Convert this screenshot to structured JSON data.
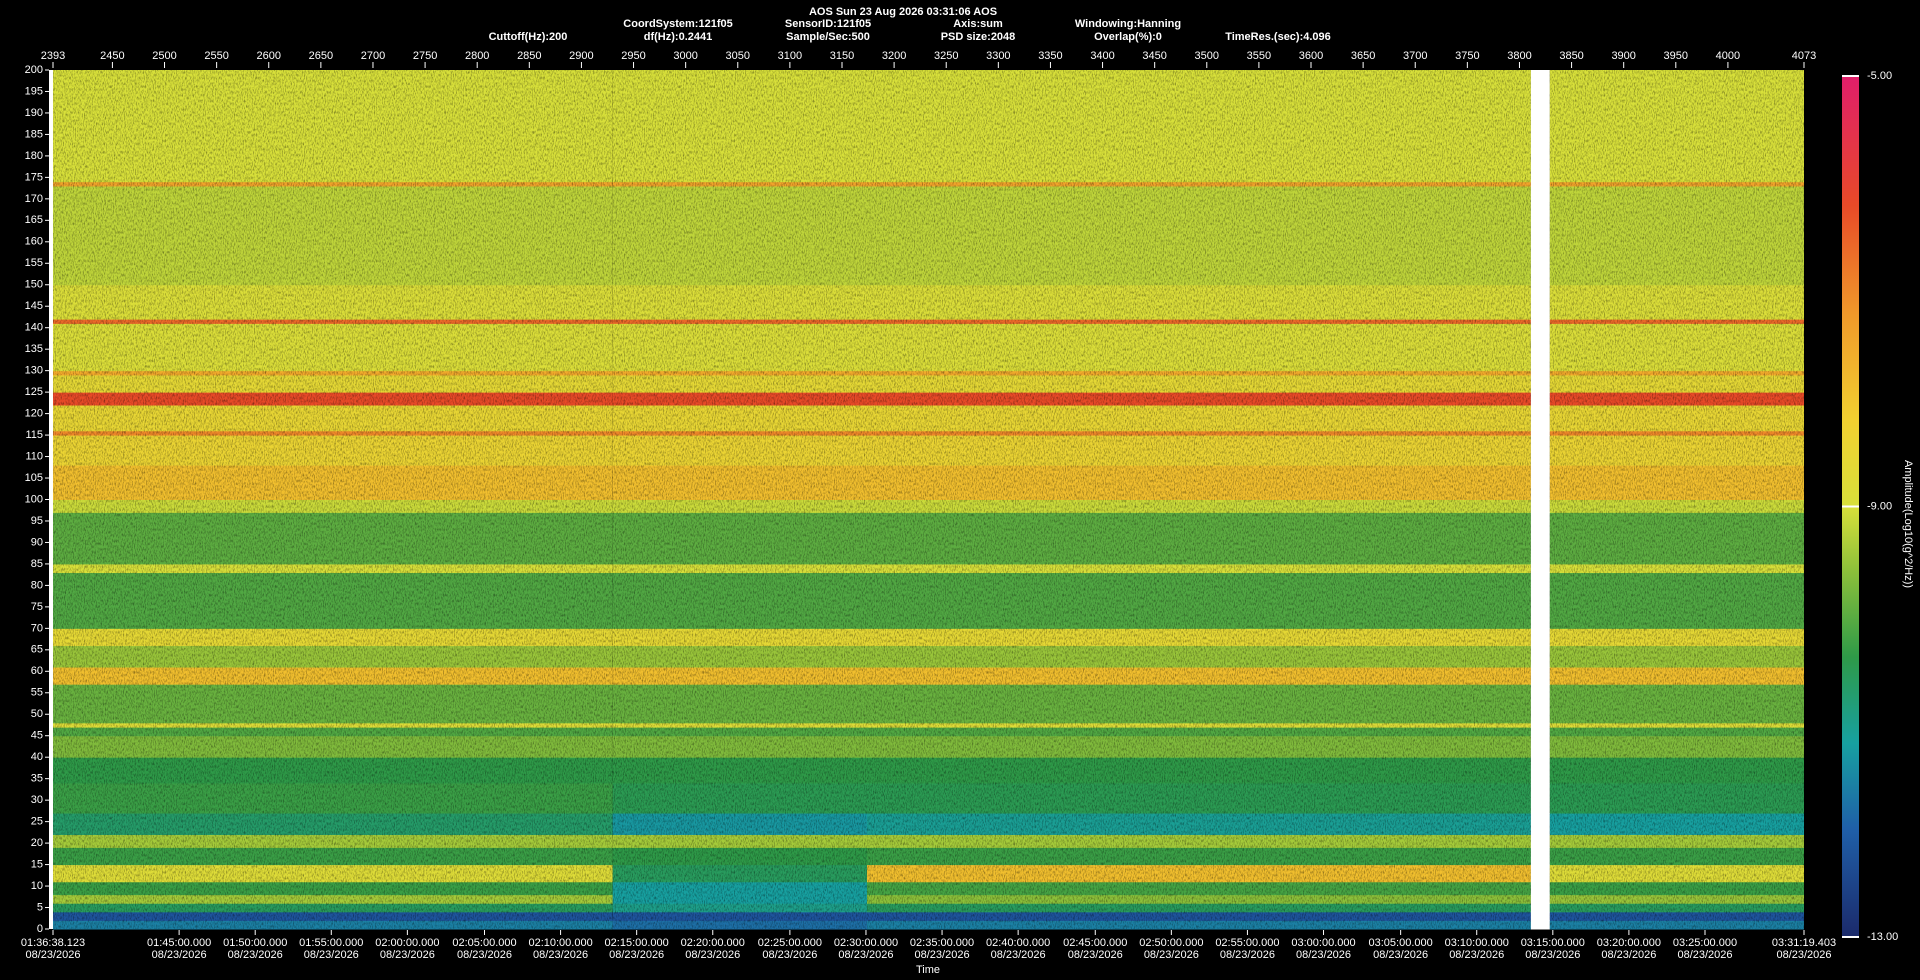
{
  "chart_data": {
    "type": "spectrogram",
    "title": "AOS  Sun 23 Aug 2026 03:31:06  AOS",
    "info_line_1": [
      "CoordSystem:121f05",
      "SensorID:121f05",
      "Axis:sum",
      "Windowing:Hanning"
    ],
    "info_line_2": [
      "Cuttoff(Hz):200",
      "df(Hz):0.2441",
      "Sample/Sec:500",
      "PSD size:2048",
      "Overlap(%):0",
      "TimeRes.(sec):4.096"
    ],
    "xlabel": "Time",
    "colorbar_label": "Amplitude(Log10(g^2/Hz))",
    "xlim": [
      2393,
      4073
    ],
    "xticks": [
      2393,
      2450,
      2500,
      2550,
      2600,
      2650,
      2700,
      2750,
      2800,
      2850,
      2900,
      2950,
      3000,
      3050,
      3100,
      3150,
      3200,
      3250,
      3300,
      3350,
      3400,
      3450,
      3500,
      3550,
      3600,
      3650,
      3700,
      3750,
      3800,
      3850,
      3900,
      3950,
      4000,
      4073
    ],
    "time_ticks": [
      {
        "value": 2393,
        "label": "01:36:38.123"
      },
      {
        "value": 2514,
        "label": "01:45:00.000"
      },
      {
        "value": 2587,
        "label": "01:50:00.000"
      },
      {
        "value": 2660,
        "label": "01:55:00.000"
      },
      {
        "value": 2733,
        "label": "02:00:00.000"
      },
      {
        "value": 2807,
        "label": "02:05:00.000"
      },
      {
        "value": 2880,
        "label": "02:10:00.000"
      },
      {
        "value": 2953,
        "label": "02:15:00.000"
      },
      {
        "value": 3026,
        "label": "02:20:00.000"
      },
      {
        "value": 3100,
        "label": "02:25:00.000"
      },
      {
        "value": 3173,
        "label": "02:30:00.000"
      },
      {
        "value": 3246,
        "label": "02:35:00.000"
      },
      {
        "value": 3319,
        "label": "02:40:00.000"
      },
      {
        "value": 3393,
        "label": "02:45:00.000"
      },
      {
        "value": 3466,
        "label": "02:50:00.000"
      },
      {
        "value": 3539,
        "label": "02:55:00.000"
      },
      {
        "value": 3612,
        "label": "03:00:00.000"
      },
      {
        "value": 3686,
        "label": "03:05:00.000"
      },
      {
        "value": 3759,
        "label": "03:10:00.000"
      },
      {
        "value": 3832,
        "label": "03:15:00.000"
      },
      {
        "value": 3905,
        "label": "03:20:00.000"
      },
      {
        "value": 3978,
        "label": "03:25:00.000"
      },
      {
        "value": 4073,
        "label": "03:31:19.403"
      }
    ],
    "time_tick_dates": [
      "08/23/2026",
      "08/23/2026",
      "08/23/2026",
      "08/23/2026",
      "08/23/2026",
      "08/23/2026",
      "08/23/2026",
      "08/23/2026",
      "08/23/2026",
      "08/23/2026",
      "08/23/2026",
      "08/23/2026",
      "08/23/2026",
      "08/23/2026",
      "08/23/2026",
      "08/23/2026",
      "08/23/2026",
      "08/23/2026",
      "08/23/2026",
      "08/23/2026",
      "08/23/2026",
      "08/23/2026",
      "08/23/2026"
    ],
    "ylim": [
      0,
      200
    ],
    "yticks": [
      0,
      5,
      10,
      15,
      20,
      25,
      30,
      35,
      40,
      45,
      50,
      55,
      60,
      65,
      70,
      75,
      80,
      85,
      90,
      95,
      100,
      105,
      110,
      115,
      120,
      125,
      130,
      135,
      140,
      145,
      150,
      155,
      160,
      165,
      170,
      175,
      180,
      185,
      190,
      195,
      200
    ],
    "x_edges": [
      2393,
      2930,
      3174,
      3811,
      3829,
      4073
    ],
    "y_edges": [
      0,
      2,
      4,
      6,
      8,
      11,
      15,
      19,
      22,
      27,
      34,
      40,
      45,
      47,
      48,
      57,
      61,
      66,
      70,
      83,
      85,
      97,
      100,
      108,
      115,
      116,
      122,
      125,
      129,
      130,
      141,
      142,
      150,
      173,
      174,
      200
    ],
    "values": [
      [
        -11.6,
        -11.8,
        -11.6,
        null,
        -11.6
      ],
      [
        -12.2,
        -12.2,
        -12.2,
        null,
        -12.2
      ],
      [
        -10.6,
        -11.0,
        -10.6,
        null,
        -10.6
      ],
      [
        -9.4,
        -11.2,
        -9.6,
        null,
        -9.5
      ],
      [
        -10.3,
        -11.2,
        -10.2,
        null,
        -10.3
      ],
      [
        -8.8,
        -10.6,
        -7.9,
        null,
        -8.8
      ],
      [
        -10.3,
        -10.4,
        -10.3,
        null,
        -10.3
      ],
      [
        -9.4,
        -9.4,
        -9.4,
        null,
        -9.4
      ],
      [
        -10.7,
        -11.3,
        -11.1,
        null,
        -11.2
      ],
      [
        -10.3,
        -10.5,
        -10.5,
        null,
        -10.5
      ],
      [
        -10.4,
        -10.4,
        -10.4,
        null,
        -10.4
      ],
      [
        -9.7,
        -9.7,
        -9.7,
        null,
        -9.7
      ],
      [
        -10.1,
        -10.1,
        -10.1,
        null,
        -10.1
      ],
      [
        -8.8,
        -8.8,
        -8.8,
        null,
        -8.8
      ],
      [
        -9.9,
        -9.9,
        -9.9,
        null,
        -9.9
      ],
      [
        -7.9,
        -7.9,
        -7.9,
        null,
        -7.9
      ],
      [
        -9.5,
        -9.5,
        -9.5,
        null,
        -9.5
      ],
      [
        -8.6,
        -8.6,
        -8.6,
        null,
        -8.6
      ],
      [
        -10.1,
        -10.1,
        -10.1,
        null,
        -10.1
      ],
      [
        -9.0,
        -9.0,
        -9.0,
        null,
        -9.0
      ],
      [
        -10.0,
        -10.0,
        -10.0,
        null,
        -10.0
      ],
      [
        -9.1,
        -9.1,
        -9.1,
        null,
        -9.1
      ],
      [
        -7.9,
        -7.9,
        -7.9,
        null,
        -7.9
      ],
      [
        -8.4,
        -8.4,
        -8.4,
        null,
        -8.4
      ],
      [
        -7.0,
        -7.0,
        -7.0,
        null,
        -7.0
      ],
      [
        -8.5,
        -8.5,
        -8.5,
        null,
        -8.5
      ],
      [
        -6.2,
        -6.2,
        -6.2,
        null,
        -6.2
      ],
      [
        -8.6,
        -8.6,
        -8.6,
        null,
        -8.6
      ],
      [
        -7.5,
        -7.5,
        -7.5,
        null,
        -7.5
      ],
      [
        -8.9,
        -8.9,
        -8.9,
        null,
        -8.9
      ],
      [
        -6.6,
        -6.6,
        -6.6,
        null,
        -6.6
      ],
      [
        -8.9,
        -8.9,
        -8.9,
        null,
        -8.9
      ],
      [
        -9.2,
        -9.2,
        -9.2,
        null,
        -9.2
      ],
      [
        -7.4,
        -7.4,
        -7.4,
        null,
        -7.4
      ],
      [
        -9.0,
        -9.0,
        -9.0,
        null,
        -9.0
      ]
    ],
    "clim": [
      -13,
      -5
    ],
    "colorbar_ticks": [
      {
        "value": -5,
        "label": "-5.00"
      },
      {
        "value": -9,
        "label": "-9.00"
      },
      {
        "value": -13,
        "label": "-13.00"
      }
    ],
    "colormap": [
      {
        "value": -13,
        "color": "#1b2a6b"
      },
      {
        "value": -12,
        "color": "#1f5fa8"
      },
      {
        "value": -11.2,
        "color": "#17a0a0"
      },
      {
        "value": -10.4,
        "color": "#2e9a48"
      },
      {
        "value": -9.6,
        "color": "#8cc03a"
      },
      {
        "value": -9,
        "color": "#d8e03a"
      },
      {
        "value": -8.2,
        "color": "#f2d030"
      },
      {
        "value": -7.2,
        "color": "#f0982a"
      },
      {
        "value": -6.2,
        "color": "#e84a28"
      },
      {
        "value": -5,
        "color": "#e01e6a"
      }
    ]
  }
}
